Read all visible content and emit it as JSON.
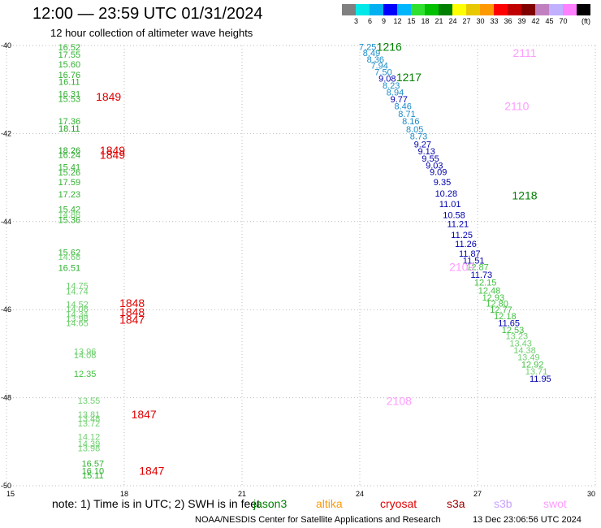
{
  "header": {
    "title": "12:00 — 23:59 UTC 01/31/2024",
    "subtitle": "12 hour collection of altimeter wave heights"
  },
  "colorbar": {
    "unit": "(ft)",
    "colors": [
      "#808080",
      "#00e8e8",
      "#00b0f0",
      "#0000ff",
      "#00b7ff",
      "#30e030",
      "#00c000",
      "#008000",
      "#ffff00",
      "#e8c800",
      "#ff9900",
      "#ff0000",
      "#c00000",
      "#800000",
      "#c080c0",
      "#c0b0ff",
      "#ff80ff",
      "#000000"
    ],
    "labels": [
      "3",
      "6",
      "9",
      "12",
      "15",
      "18",
      "21",
      "24",
      "27",
      "30",
      "33",
      "36",
      "39",
      "42",
      "45",
      "70"
    ]
  },
  "footer": {
    "note": "note:  1) Time is in UTC; 2) SWH is in feet",
    "sats": [
      {
        "name": "jason3",
        "color": "#008000"
      },
      {
        "name": "altika",
        "color": "#ff9900"
      },
      {
        "name": "cryosat",
        "color": "#e00000"
      },
      {
        "name": "s3a",
        "color": "#a00000"
      },
      {
        "name": "s3b",
        "color": "#c8a0ff"
      },
      {
        "name": "swot",
        "color": "#ff9cff"
      }
    ],
    "credit": "NOAA/NESDIS Center for Satellite Applications and Research",
    "generated": "13 Dec 23:06:56 UTC 2024"
  },
  "chart_data": {
    "type": "scatter",
    "title": "12:00 — 23:59 UTC 01/31/2024",
    "subtitle": "12 hour collection of altimeter wave heights",
    "xlim": [
      15,
      30
    ],
    "ylim": [
      -50,
      -40
    ],
    "xticks": [
      "15",
      "18",
      "21",
      "24",
      "27",
      "30"
    ],
    "yticks": [
      "-40",
      "-42",
      "-44",
      "-46",
      "-48",
      "-50"
    ],
    "grid": true,
    "units": "ft",
    "value_colors": [
      {
        "max": 6,
        "color": "#4db8d8"
      },
      {
        "max": 9,
        "color": "#1a8cc8"
      },
      {
        "max": 12,
        "color": "#0000b0"
      },
      {
        "max": 13,
        "color": "#40c040"
      },
      {
        "max": 15,
        "color": "#70d070"
      },
      {
        "max": 18,
        "color": "#30b030"
      },
      {
        "max": 99,
        "color": "#20a020"
      }
    ],
    "track_labels": [
      {
        "text": "1849",
        "x": 17.6,
        "y": -41.16,
        "color": "#e00000"
      },
      {
        "text": "1849",
        "x": 17.7,
        "y": -42.38,
        "color": "#e00000"
      },
      {
        "text": "1849",
        "x": 17.7,
        "y": -42.48,
        "color": "#e00000"
      },
      {
        "text": "1848",
        "x": 18.2,
        "y": -45.85,
        "color": "#e00000"
      },
      {
        "text": "1848",
        "x": 18.2,
        "y": -46.05,
        "color": "#e00000"
      },
      {
        "text": "1847",
        "x": 18.2,
        "y": -46.23,
        "color": "#e00000"
      },
      {
        "text": "1847",
        "x": 18.5,
        "y": -48.38,
        "color": "#e00000"
      },
      {
        "text": "1847",
        "x": 18.7,
        "y": -49.66,
        "color": "#e00000"
      },
      {
        "text": "1216",
        "x": 24.75,
        "y": -40.03,
        "color": "#008000"
      },
      {
        "text": "1217",
        "x": 25.25,
        "y": -40.72,
        "color": "#008000"
      },
      {
        "text": "1218",
        "x": 28.2,
        "y": -43.4,
        "color": "#008000"
      },
      {
        "text": "2111",
        "x": 28.2,
        "y": -40.17,
        "color": "#ff9cff"
      },
      {
        "text": "2110",
        "x": 28.0,
        "y": -41.37,
        "color": "#ff9cff"
      },
      {
        "text": "2109",
        "x": 26.6,
        "y": -45.03,
        "color": "#ff9cff"
      },
      {
        "text": "2108",
        "x": 25.0,
        "y": -48.07,
        "color": "#ff9cff"
      }
    ],
    "points": [
      {
        "x": 16.6,
        "y": -40.04,
        "v": 16.52
      },
      {
        "x": 16.6,
        "y": -40.2,
        "v": 17.55
      },
      {
        "x": 16.6,
        "y": -40.42,
        "v": 15.6
      },
      {
        "x": 16.6,
        "y": -40.66,
        "v": 16.76
      },
      {
        "x": 16.6,
        "y": -40.82,
        "v": 16.11
      },
      {
        "x": 16.6,
        "y": -41.1,
        "v": 16.31
      },
      {
        "x": 16.6,
        "y": -41.21,
        "v": 15.53
      },
      {
        "x": 16.6,
        "y": -41.72,
        "v": 17.36
      },
      {
        "x": 16.6,
        "y": -41.88,
        "v": 18.11
      },
      {
        "x": 16.6,
        "y": -42.38,
        "v": 18.26
      },
      {
        "x": 16.6,
        "y": -42.48,
        "v": 16.24
      },
      {
        "x": 16.6,
        "y": -42.76,
        "v": 15.41
      },
      {
        "x": 16.6,
        "y": -42.88,
        "v": 15.26
      },
      {
        "x": 16.6,
        "y": -43.1,
        "v": 17.59
      },
      {
        "x": 16.6,
        "y": -43.38,
        "v": 17.23
      },
      {
        "x": 16.6,
        "y": -43.72,
        "v": 15.42
      },
      {
        "x": 16.6,
        "y": -43.84,
        "v": 14.88
      },
      {
        "x": 16.6,
        "y": -43.96,
        "v": 15.36
      },
      {
        "x": 16.6,
        "y": -44.7,
        "v": 15.62
      },
      {
        "x": 16.6,
        "y": -44.8,
        "v": 14.68
      },
      {
        "x": 16.6,
        "y": -45.05,
        "v": 16.51
      },
      {
        "x": 16.8,
        "y": -45.45,
        "v": 14.75
      },
      {
        "x": 16.8,
        "y": -45.58,
        "v": 14.74
      },
      {
        "x": 16.8,
        "y": -45.88,
        "v": 14.52
      },
      {
        "x": 16.8,
        "y": -45.98,
        "v": 14.08
      },
      {
        "x": 16.8,
        "y": -46.1,
        "v": 14.34
      },
      {
        "x": 16.8,
        "y": -46.2,
        "v": 13.98
      },
      {
        "x": 16.8,
        "y": -46.3,
        "v": 14.65
      },
      {
        "x": 17.0,
        "y": -46.95,
        "v": 13.96
      },
      {
        "x": 17.0,
        "y": -47.03,
        "v": 14.08
      },
      {
        "x": 17.0,
        "y": -47.45,
        "v": 12.35
      },
      {
        "x": 17.1,
        "y": -48.06,
        "v": 13.55
      },
      {
        "x": 17.1,
        "y": -48.38,
        "v": 13.81
      },
      {
        "x": 17.1,
        "y": -48.47,
        "v": 13.48
      },
      {
        "x": 17.1,
        "y": -48.58,
        "v": 13.72
      },
      {
        "x": 17.1,
        "y": -48.88,
        "v": 14.12
      },
      {
        "x": 17.1,
        "y": -49.04,
        "v": 14.39
      },
      {
        "x": 17.1,
        "y": -49.14,
        "v": 13.98
      },
      {
        "x": 17.2,
        "y": -49.49,
        "v": 16.57
      },
      {
        "x": 17.2,
        "y": -49.66,
        "v": 16.1
      },
      {
        "x": 17.2,
        "y": -49.76,
        "v": 15.11
      },
      {
        "x": 24.2,
        "y": -40.03,
        "v": 7.25
      },
      {
        "x": 24.3,
        "y": -40.17,
        "v": 8.49
      },
      {
        "x": 24.4,
        "y": -40.31,
        "v": 8.36
      },
      {
        "x": 24.5,
        "y": -40.45,
        "v": 7.94
      },
      {
        "x": 24.6,
        "y": -40.6,
        "v": 7.5
      },
      {
        "x": 24.7,
        "y": -40.75,
        "v": 9.08
      },
      {
        "x": 24.8,
        "y": -40.9,
        "v": 8.23
      },
      {
        "x": 24.9,
        "y": -41.06,
        "v": 8.94
      },
      {
        "x": 25.0,
        "y": -41.22,
        "v": 9.77
      },
      {
        "x": 25.1,
        "y": -41.37,
        "v": 8.46
      },
      {
        "x": 25.2,
        "y": -41.55,
        "v": 8.71
      },
      {
        "x": 25.3,
        "y": -41.72,
        "v": 8.16
      },
      {
        "x": 25.4,
        "y": -41.9,
        "v": 8.05
      },
      {
        "x": 25.5,
        "y": -42.06,
        "v": 8.73
      },
      {
        "x": 25.6,
        "y": -42.24,
        "v": 9.27
      },
      {
        "x": 25.7,
        "y": -42.4,
        "v": 9.13
      },
      {
        "x": 25.8,
        "y": -42.56,
        "v": 9.55
      },
      {
        "x": 25.9,
        "y": -42.72,
        "v": 9.03
      },
      {
        "x": 26.0,
        "y": -42.87,
        "v": 9.09
      },
      {
        "x": 26.1,
        "y": -43.1,
        "v": 9.35
      },
      {
        "x": 26.2,
        "y": -43.36,
        "v": 10.28
      },
      {
        "x": 26.3,
        "y": -43.6,
        "v": 11.01
      },
      {
        "x": 26.4,
        "y": -43.85,
        "v": 10.58
      },
      {
        "x": 26.5,
        "y": -44.05,
        "v": 11.21
      },
      {
        "x": 26.6,
        "y": -44.3,
        "v": 11.25
      },
      {
        "x": 26.7,
        "y": -44.5,
        "v": 11.26
      },
      {
        "x": 26.8,
        "y": -44.72,
        "v": 11.87
      },
      {
        "x": 26.9,
        "y": -44.88,
        "v": 11.51
      },
      {
        "x": 27.0,
        "y": -45.03,
        "v": 12.87
      },
      {
        "x": 27.1,
        "y": -45.2,
        "v": 11.73
      },
      {
        "x": 27.2,
        "y": -45.38,
        "v": 12.15
      },
      {
        "x": 27.3,
        "y": -45.56,
        "v": 12.48
      },
      {
        "x": 27.4,
        "y": -45.72,
        "v": 12.93
      },
      {
        "x": 27.5,
        "y": -45.86,
        "v": 12.8
      },
      {
        "x": 27.6,
        "y": -46.0,
        "v": 12.77
      },
      {
        "x": 27.7,
        "y": -46.14,
        "v": 12.18
      },
      {
        "x": 27.8,
        "y": -46.3,
        "v": 11.65
      },
      {
        "x": 27.9,
        "y": -46.46,
        "v": 12.53
      },
      {
        "x": 28.0,
        "y": -46.6,
        "v": 13.23
      },
      {
        "x": 28.1,
        "y": -46.76,
        "v": 13.43
      },
      {
        "x": 28.2,
        "y": -46.92,
        "v": 14.38
      },
      {
        "x": 28.3,
        "y": -47.08,
        "v": 13.49
      },
      {
        "x": 28.4,
        "y": -47.24,
        "v": 12.92
      },
      {
        "x": 28.5,
        "y": -47.4,
        "v": 13.71
      },
      {
        "x": 28.6,
        "y": -47.56,
        "v": 11.95
      }
    ]
  }
}
